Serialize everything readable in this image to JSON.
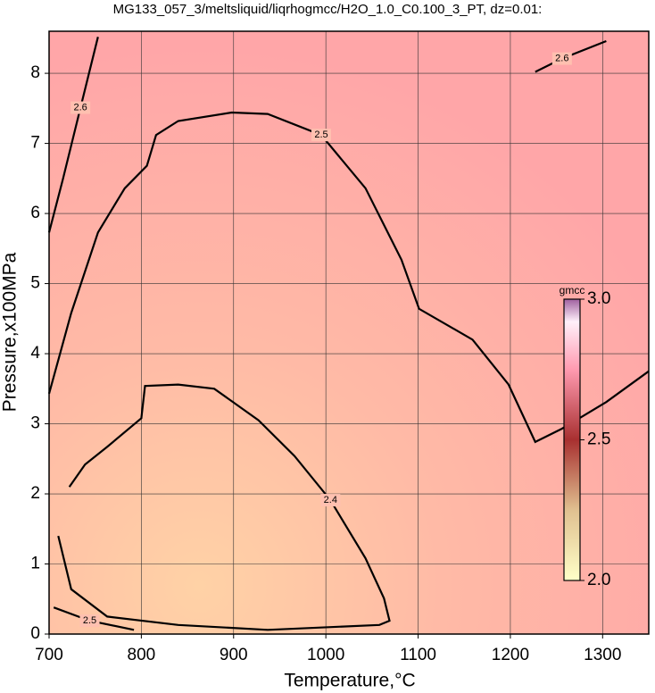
{
  "chart_data": {
    "type": "contour",
    "title": "MG133_057_3/meltsliquid/liqrhogmcc/H2O_1.0_C0.100_3_PT, dz=0.01:",
    "x_label": "Temperature,°C",
    "y_label": "Pressure,x100MPa",
    "xlim": [
      700,
      1350
    ],
    "ylim": [
      0,
      8.6
    ],
    "xticks": [
      700,
      800,
      900,
      1000,
      1100,
      1200,
      1300
    ],
    "yticks": [
      0,
      1,
      2,
      3,
      4,
      5,
      6,
      7,
      8
    ],
    "grid": true,
    "contours": [
      {
        "level": 2.4,
        "x": [
          722,
          739,
          763,
          800,
          804,
          840,
          879,
          927,
          966,
          1005,
          1043,
          1063,
          1069,
          1058,
          937,
          840,
          763,
          724,
          710
        ],
        "y": [
          2.1,
          2.42,
          2.67,
          3.08,
          3.54,
          3.56,
          3.5,
          3.05,
          2.54,
          1.91,
          1.08,
          0.51,
          0.19,
          0.13,
          0.06,
          0.13,
          0.25,
          0.64,
          1.4
        ]
      },
      {
        "level": 2.5,
        "x": [
          700,
          724,
          753,
          782,
          806,
          816,
          840,
          898,
          937,
          995,
          1043,
          1082,
          1101,
          1159,
          1198,
          1227,
          1256,
          1304,
          1350
        ],
        "y": [
          3.43,
          4.58,
          5.73,
          6.36,
          6.68,
          7.12,
          7.32,
          7.44,
          7.42,
          7.12,
          6.36,
          5.34,
          4.64,
          4.2,
          3.56,
          2.74,
          2.93,
          3.31,
          3.75
        ]
      },
      {
        "level": 2.5,
        "x": [
          705,
          744,
          792
        ],
        "y": [
          0.38,
          0.19,
          0.06
        ]
      },
      {
        "level": 2.6,
        "x": [
          1227,
          1256,
          1304
        ],
        "y": [
          8.02,
          8.21,
          8.46
        ]
      },
      {
        "level": 2.6,
        "x": [
          700,
          715,
          734,
          753
        ],
        "y": [
          5.73,
          6.49,
          7.51,
          8.52
        ]
      }
    ],
    "colorbar": {
      "label": "gmcc",
      "lim": [
        2.0,
        3.0
      ],
      "ticks": [
        {
          "value": 2.0,
          "label": "2.0"
        },
        2.5,
        {
          "value": 3.0,
          "label": "3.0"
        }
      ]
    }
  }
}
